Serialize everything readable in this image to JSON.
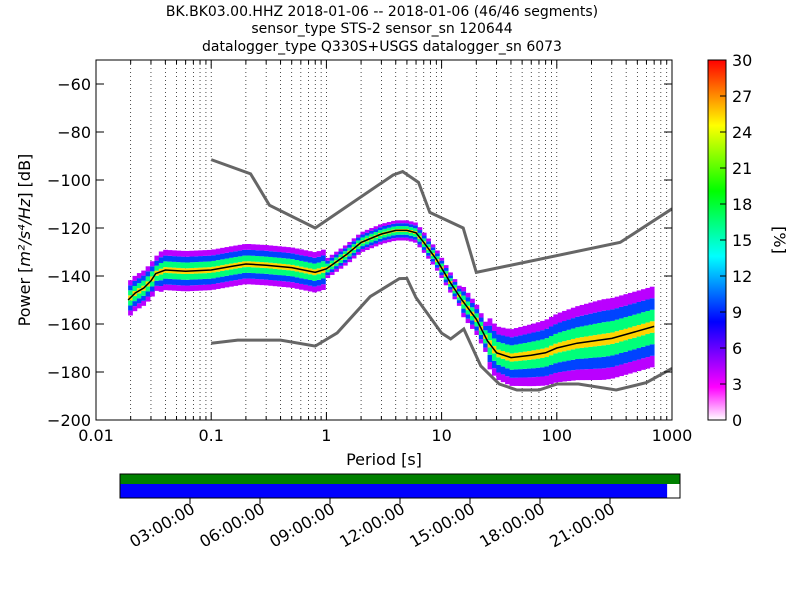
{
  "title": {
    "line1": "BK.BK03.00.HHZ   2018-01-06 -- 2018-01-06  (46/46 segments)",
    "line2": "sensor_type STS-2 sensor_sn 120644",
    "line3": "datalogger_type Q330S+USGS datalogger_sn 6073"
  },
  "chart_data": [
    {
      "type": "heatmap",
      "subtype": "probabilistic power spectral density",
      "xlabel": "Period [s]",
      "ylabel_prefix": "Power [",
      "ylabel_units": "m²/s⁴/Hz",
      "ylabel_suffix": "] [dB]",
      "x_scale": "log",
      "xlim": [
        0.01,
        1000
      ],
      "ylim": [
        -200,
        -50
      ],
      "x_ticks": [
        {
          "value": 0.01,
          "label": "0.01"
        },
        {
          "value": 0.1,
          "label": "0.1"
        },
        {
          "value": 1,
          "label": "1"
        },
        {
          "value": 10,
          "label": "10"
        },
        {
          "value": 100,
          "label": "100"
        },
        {
          "value": 1000,
          "label": "1000"
        }
      ],
      "y_ticks": [
        {
          "value": -60,
          "label": "−60"
        },
        {
          "value": -80,
          "label": "−80"
        },
        {
          "value": -100,
          "label": "−100"
        },
        {
          "value": -120,
          "label": "−120"
        },
        {
          "value": -140,
          "label": "−140"
        },
        {
          "value": -160,
          "label": "−160"
        },
        {
          "value": -180,
          "label": "−180"
        },
        {
          "value": -200,
          "label": "−200"
        }
      ],
      "grid": "dotted vertical at log minor ticks",
      "colorbar": {
        "label": "[%]",
        "range": [
          0,
          30
        ],
        "ticks": [
          {
            "value": 0,
            "label": "0"
          },
          {
            "value": 3,
            "label": "3"
          },
          {
            "value": 6,
            "label": "6"
          },
          {
            "value": 9,
            "label": "9"
          },
          {
            "value": 12,
            "label": "12"
          },
          {
            "value": 15,
            "label": "15"
          },
          {
            "value": 18,
            "label": "18"
          },
          {
            "value": 21,
            "label": "21"
          },
          {
            "value": 24,
            "label": "24"
          },
          {
            "value": 27,
            "label": "27"
          },
          {
            "value": 30,
            "label": "30"
          }
        ],
        "colors": [
          "#ffffff",
          "#ff00ff",
          "#8000ff",
          "#0000ff",
          "#0080ff",
          "#00ffff",
          "#00ff80",
          "#00ff00",
          "#80ff00",
          "#ffff00",
          "#ff8000",
          "#ff0000"
        ]
      },
      "nhnm": [
        [
          0.1,
          -91.5
        ],
        [
          0.22,
          -97.4
        ],
        [
          0.32,
          -110.5
        ],
        [
          0.8,
          -120
        ],
        [
          3.8,
          -97.9
        ],
        [
          4.6,
          -96.5
        ],
        [
          6.3,
          -101
        ],
        [
          7.9,
          -113.5
        ],
        [
          15.4,
          -120
        ],
        [
          20,
          -138.5
        ],
        [
          354.8,
          -126
        ],
        [
          1000,
          -112
        ]
      ],
      "nlnm": [
        [
          0.1,
          -168
        ],
        [
          0.17,
          -166.7
        ],
        [
          0.4,
          -166.7
        ],
        [
          0.8,
          -169.2
        ],
        [
          1.24,
          -163.7
        ],
        [
          2.4,
          -148.6
        ],
        [
          4.3,
          -141.1
        ],
        [
          5,
          -141
        ],
        [
          6,
          -149
        ],
        [
          10,
          -163.8
        ],
        [
          12,
          -166.2
        ],
        [
          15.6,
          -162.1
        ],
        [
          21.9,
          -177.5
        ],
        [
          31.6,
          -185
        ],
        [
          45,
          -187.5
        ],
        [
          70,
          -187.5
        ],
        [
          101,
          -185
        ],
        [
          154,
          -185
        ],
        [
          328,
          -187.5
        ],
        [
          600,
          -184.4
        ],
        [
          1000,
          -178.5
        ]
      ],
      "mode_curve": [
        [
          0.019,
          -150
        ],
        [
          0.022,
          -147
        ],
        [
          0.026,
          -145
        ],
        [
          0.03,
          -142
        ],
        [
          0.033,
          -139
        ],
        [
          0.04,
          -137.5
        ],
        [
          0.06,
          -138
        ],
        [
          0.1,
          -137.5
        ],
        [
          0.15,
          -136
        ],
        [
          0.2,
          -135
        ],
        [
          0.3,
          -135.5
        ],
        [
          0.5,
          -136.5
        ],
        [
          0.8,
          -138.5
        ],
        [
          1,
          -137
        ],
        [
          1.5,
          -131
        ],
        [
          2,
          -126
        ],
        [
          3,
          -122.5
        ],
        [
          4,
          -121
        ],
        [
          5,
          -121
        ],
        [
          6,
          -122
        ],
        [
          7,
          -126
        ],
        [
          9,
          -133
        ],
        [
          12,
          -143
        ],
        [
          15,
          -150
        ],
        [
          20,
          -158
        ],
        [
          25,
          -167
        ],
        [
          30,
          -172
        ],
        [
          40,
          -174
        ],
        [
          60,
          -173
        ],
        [
          80,
          -172
        ],
        [
          100,
          -170
        ],
        [
          150,
          -168
        ],
        [
          300,
          -166
        ],
        [
          500,
          -163
        ],
        [
          700,
          -161
        ]
      ],
      "time_axis": {
        "ticks": [
          "03:00:00",
          "06:00:00",
          "09:00:00",
          "12:00:00",
          "15:00:00",
          "18:00:00",
          "21:00:00"
        ],
        "data_coverage_fraction": 1.0,
        "segment_coverage_fraction": 0.977,
        "data_color": "#008000",
        "segment_color": "#0000ff"
      }
    }
  ]
}
